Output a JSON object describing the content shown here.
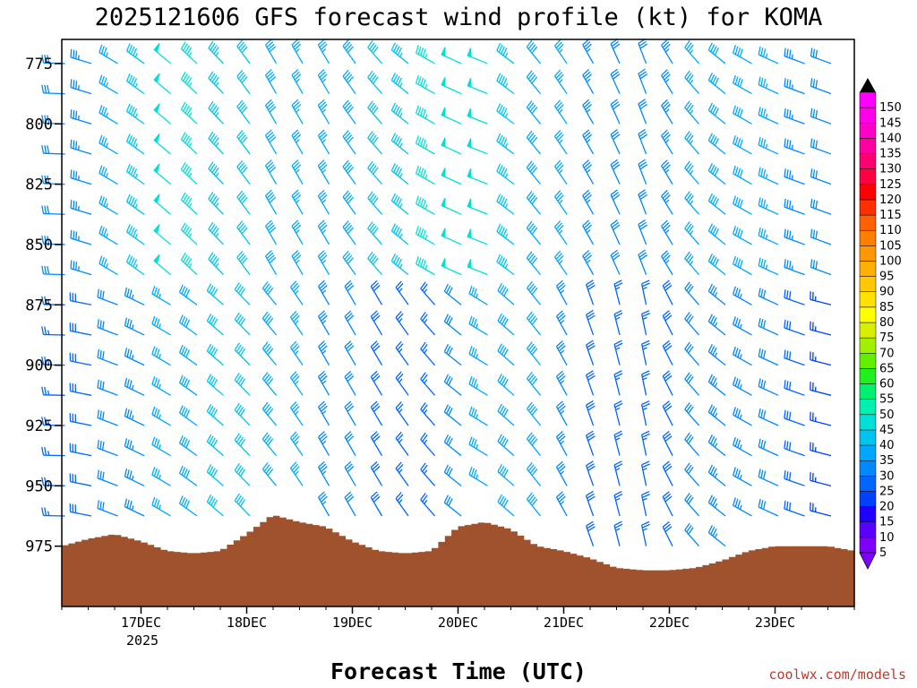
{
  "chart_data": {
    "type": "wind-barb-profile",
    "title": "2025121606 GFS forecast wind profile (kt) for KOMA",
    "xlabel": "Forecast Time (UTC)",
    "ylabel": "",
    "x_ticks": [
      "17DEC",
      "18DEC",
      "19DEC",
      "20DEC",
      "21DEC",
      "22DEC",
      "23DEC"
    ],
    "x_year": "2025",
    "y_ticks": [
      775,
      800,
      825,
      850,
      875,
      900,
      925,
      950,
      975
    ],
    "ylim": [
      1000,
      765
    ],
    "x_range_days": [
      16.25,
      23.75
    ],
    "time_step_hours": 6,
    "barb_levels": [
      775,
      787.5,
      800,
      812.5,
      825,
      837.5,
      850,
      862.5,
      875,
      887.5,
      900,
      912.5,
      925,
      937.5,
      950,
      962.5,
      975
    ],
    "colorbar": {
      "levels": [
        5,
        10,
        15,
        20,
        25,
        30,
        35,
        40,
        45,
        50,
        55,
        60,
        65,
        70,
        75,
        80,
        85,
        90,
        95,
        100,
        105,
        110,
        115,
        120,
        125,
        130,
        135,
        140,
        145,
        150
      ],
      "colors": [
        "#7f00ff",
        "#5a00ff",
        "#2000ff",
        "#0040ff",
        "#0066ff",
        "#0088ff",
        "#00a8ff",
        "#00c4f0",
        "#00e0d8",
        "#00f0b0",
        "#00f070",
        "#20f020",
        "#60f000",
        "#a0f000",
        "#d8f000",
        "#ffff00",
        "#ffe000",
        "#ffc800",
        "#ffb000",
        "#ff9800",
        "#ff8000",
        "#ff6000",
        "#ff3000",
        "#ff0000",
        "#ff0040",
        "#ff0070",
        "#ff00a0",
        "#ff00c8",
        "#ff00e8",
        "#ff00ff"
      ]
    },
    "surface_pressure_x": [
      16.25,
      16.5,
      16.75,
      17.0,
      17.25,
      17.5,
      17.75,
      18.0,
      18.25,
      18.5,
      18.75,
      19.0,
      19.25,
      19.5,
      19.75,
      20.0,
      20.25,
      20.5,
      20.75,
      21.0,
      21.25,
      21.5,
      21.75,
      22.0,
      22.25,
      22.5,
      22.75,
      23.0,
      23.25,
      23.5,
      23.75
    ],
    "surface_pressure": [
      975,
      972,
      970,
      973,
      977,
      978,
      977,
      970,
      962,
      965,
      967,
      973,
      977,
      978,
      977,
      967,
      965,
      968,
      975,
      977,
      980,
      984,
      985,
      985,
      984,
      981,
      977,
      975,
      975,
      975,
      977
    ],
    "surface_color": "#a0522d",
    "series": [
      {
        "levels": "775-850",
        "speed_kt": [
          30,
          35,
          50,
          45,
          40,
          35,
          40,
          45,
          50,
          40,
          35,
          30,
          35,
          40,
          35,
          30
        ],
        "dir_deg": [
          270,
          300,
          310,
          315,
          330,
          330,
          320,
          300,
          290,
          320,
          330,
          340,
          320,
          300,
          290,
          290
        ]
      },
      {
        "levels": "875-975",
        "speed_kt": [
          25,
          30,
          35,
          40,
          40,
          35,
          30,
          25,
          35,
          40,
          30,
          25,
          30,
          35,
          30,
          20
        ],
        "dir_deg": [
          270,
          290,
          300,
          310,
          320,
          330,
          330,
          320,
          300,
          320,
          340,
          350,
          320,
          300,
          290,
          280
        ]
      }
    ]
  },
  "footer": {
    "credit": "coolwx.com/models"
  }
}
